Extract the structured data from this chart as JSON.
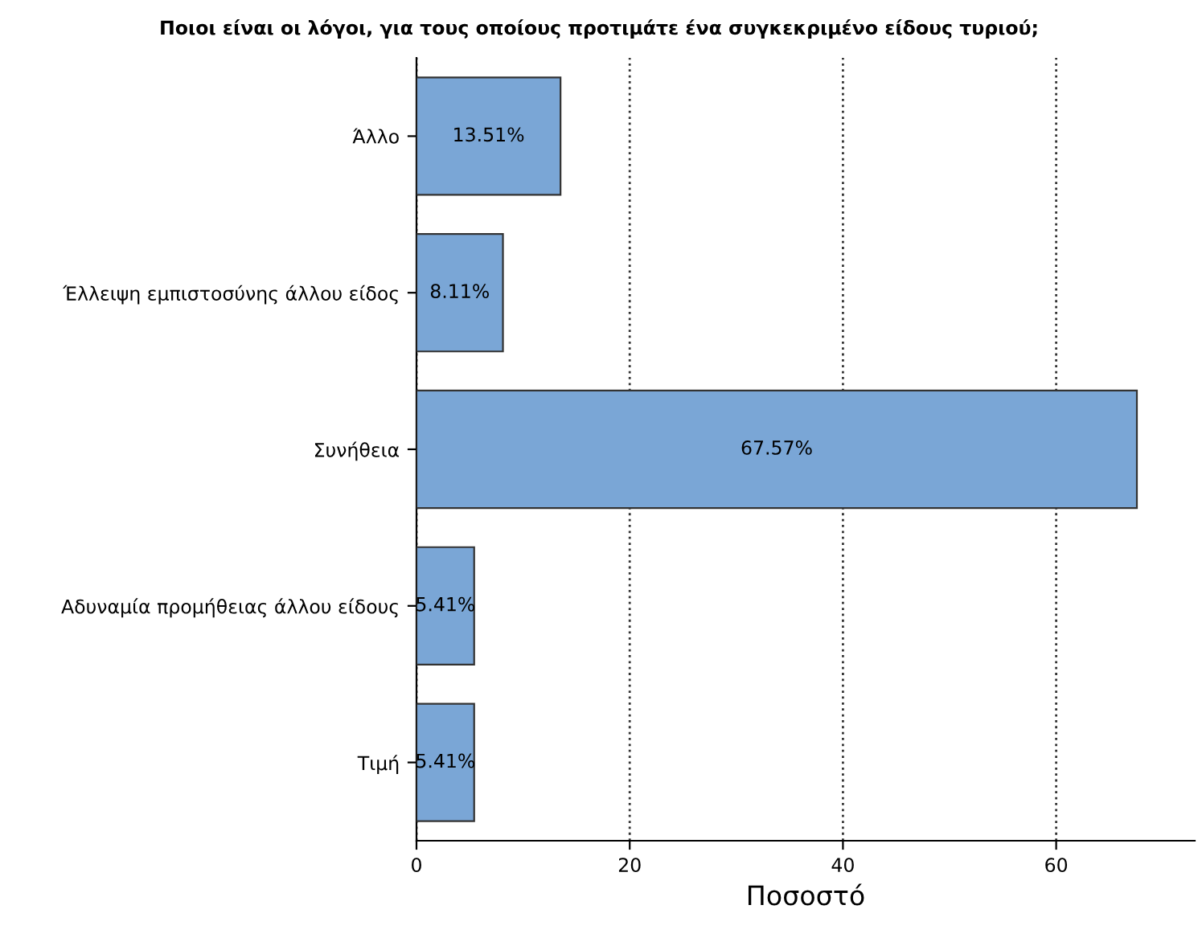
{
  "chart_data": {
    "type": "bar",
    "orientation": "horizontal",
    "title": "Ποιοι είναι οι λόγοι, για τους οποίους προτιμάτε ένα συγκεκριμένο είδους τυριού;",
    "xlabel": "Ποσοστό",
    "categories": [
      "Άλλο",
      "Έλλειψη εμπιστοσύνης άλλου είδος",
      "Συνήθεια",
      "Αδυναμία προμήθειας άλλου είδους",
      "Τιμή"
    ],
    "values": [
      13.51,
      8.11,
      67.57,
      5.41,
      5.41
    ],
    "value_labels": [
      "13.51%",
      "8.11%",
      "67.57%",
      "5.41%",
      "5.41%"
    ],
    "color": "#7aa6d6",
    "xlim": [
      0,
      73
    ],
    "xticks": [
      0,
      20,
      40,
      60
    ],
    "grid": "x",
    "line_style": "dotted"
  }
}
